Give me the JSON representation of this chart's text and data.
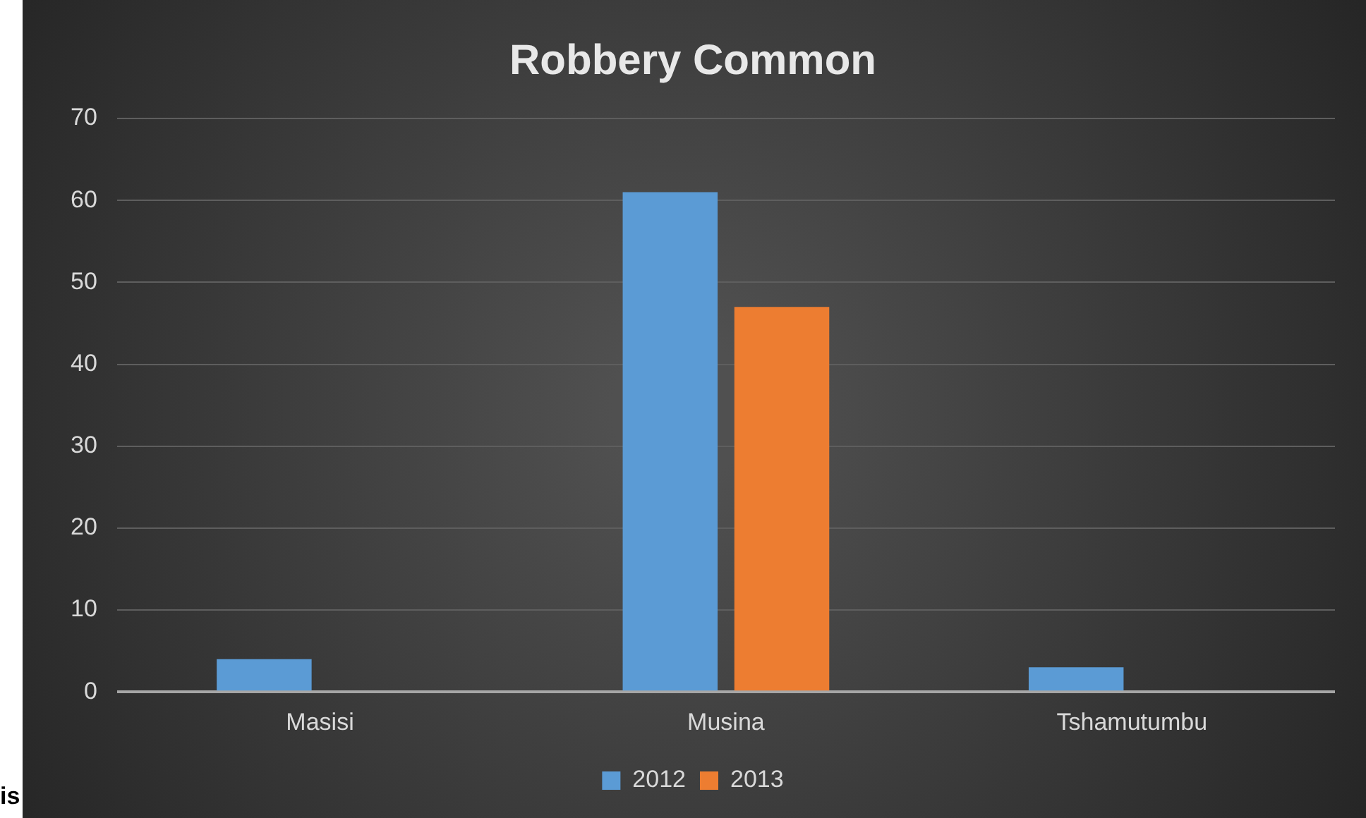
{
  "chart_data": {
    "type": "bar",
    "title": "Robbery Common",
    "categories": [
      "Masisi",
      "Musina",
      "Tshamutumbu"
    ],
    "series": [
      {
        "name": "2012",
        "color": "#5b9bd5",
        "values": [
          4,
          61,
          3
        ]
      },
      {
        "name": "2013",
        "color": "#ed7d31",
        "values": [
          null,
          47,
          null
        ]
      }
    ],
    "ylim": [
      0,
      70
    ],
    "yticks": [
      0,
      10,
      20,
      30,
      40,
      50,
      60,
      70
    ],
    "grid": "y",
    "legend": "bottom",
    "annotations": [
      "is"
    ]
  }
}
